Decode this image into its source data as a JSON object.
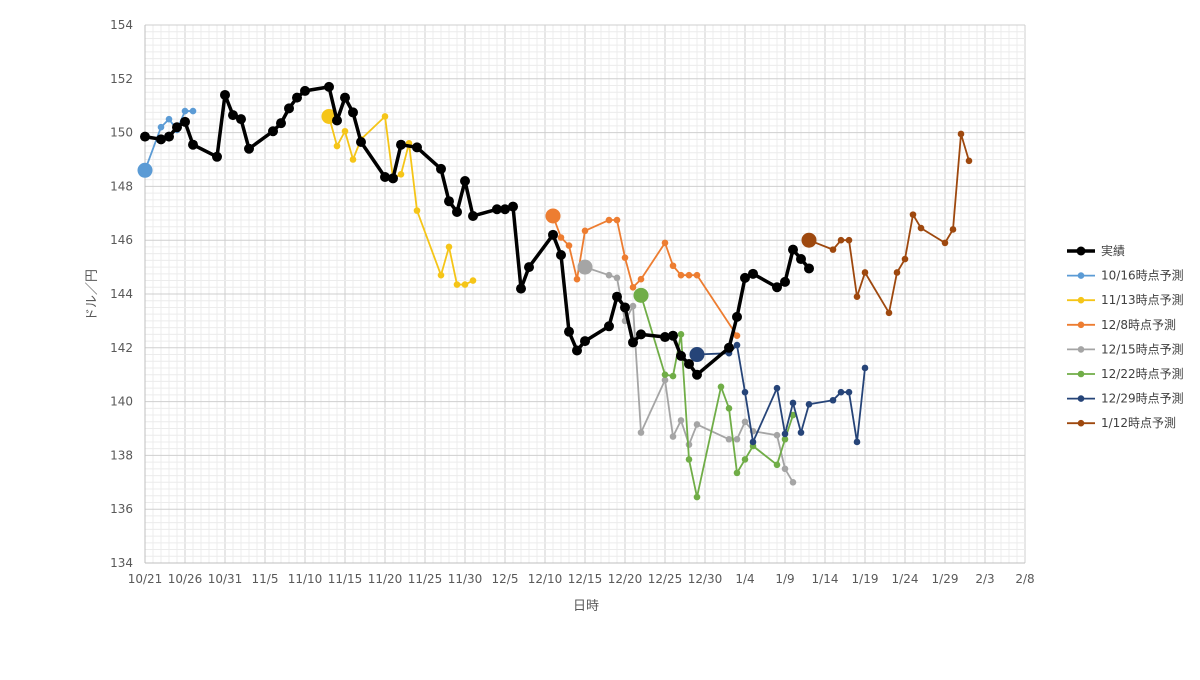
{
  "chart_data": {
    "type": "line",
    "title": "",
    "xlabel": "日時",
    "ylabel": "ドル／円",
    "ylim": [
      134,
      154
    ],
    "y_step": 2,
    "x_range": [
      "2023-10-21",
      "2024-02-08"
    ],
    "x_ticks": [
      {
        "date": "2023-10-21",
        "label": "10/21"
      },
      {
        "date": "2023-10-26",
        "label": "10/26"
      },
      {
        "date": "2023-10-31",
        "label": "10/31"
      },
      {
        "date": "2023-11-05",
        "label": "11/5"
      },
      {
        "date": "2023-11-10",
        "label": "11/10"
      },
      {
        "date": "2023-11-15",
        "label": "11/15"
      },
      {
        "date": "2023-11-20",
        "label": "11/20"
      },
      {
        "date": "2023-11-25",
        "label": "11/25"
      },
      {
        "date": "2023-11-30",
        "label": "11/30"
      },
      {
        "date": "2023-12-05",
        "label": "12/5"
      },
      {
        "date": "2023-12-10",
        "label": "12/10"
      },
      {
        "date": "2023-12-15",
        "label": "12/15"
      },
      {
        "date": "2023-12-20",
        "label": "12/20"
      },
      {
        "date": "2023-12-25",
        "label": "12/25"
      },
      {
        "date": "2023-12-30",
        "label": "12/30"
      },
      {
        "date": "2024-01-04",
        "label": "1/4"
      },
      {
        "date": "2024-01-09",
        "label": "1/9"
      },
      {
        "date": "2024-01-14",
        "label": "1/14"
      },
      {
        "date": "2024-01-19",
        "label": "1/19"
      },
      {
        "date": "2024-01-24",
        "label": "1/24"
      },
      {
        "date": "2024-01-29",
        "label": "1/29"
      },
      {
        "date": "2024-02-03",
        "label": "2/3"
      },
      {
        "date": "2024-02-08",
        "label": "2/8"
      }
    ],
    "grid": true,
    "legend_position": "right",
    "series": [
      {
        "name": "実績",
        "color": "#000000",
        "points": [
          [
            "2023-10-21",
            149.85
          ],
          [
            "2023-10-23",
            149.75
          ],
          [
            "2023-10-24",
            149.85
          ],
          [
            "2023-10-25",
            150.2
          ],
          [
            "2023-10-26",
            150.4
          ],
          [
            "2023-10-27",
            149.55
          ],
          [
            "2023-10-30",
            149.1
          ],
          [
            "2023-10-31",
            151.4
          ],
          [
            "2023-11-01",
            150.65
          ],
          [
            "2023-11-02",
            150.5
          ],
          [
            "2023-11-03",
            149.4
          ],
          [
            "2023-11-06",
            150.05
          ],
          [
            "2023-11-07",
            150.35
          ],
          [
            "2023-11-08",
            150.9
          ],
          [
            "2023-11-09",
            151.3
          ],
          [
            "2023-11-10",
            151.55
          ],
          [
            "2023-11-13",
            151.7
          ],
          [
            "2023-11-14",
            150.45
          ],
          [
            "2023-11-15",
            151.3
          ],
          [
            "2023-11-16",
            150.75
          ],
          [
            "2023-11-17",
            149.65
          ],
          [
            "2023-11-20",
            148.35
          ],
          [
            "2023-11-21",
            148.3
          ],
          [
            "2023-11-22",
            149.55
          ],
          [
            "2023-11-24",
            149.45
          ],
          [
            "2023-11-27",
            148.65
          ],
          [
            "2023-11-28",
            147.45
          ],
          [
            "2023-11-29",
            147.05
          ],
          [
            "2023-11-30",
            148.2
          ],
          [
            "2023-12-01",
            146.9
          ],
          [
            "2023-12-04",
            147.15
          ],
          [
            "2023-12-05",
            147.15
          ],
          [
            "2023-12-06",
            147.25
          ],
          [
            "2023-12-07",
            144.2
          ],
          [
            "2023-12-08",
            145.0
          ],
          [
            "2023-12-11",
            146.2
          ],
          [
            "2023-12-12",
            145.45
          ],
          [
            "2023-12-13",
            142.6
          ],
          [
            "2023-12-14",
            141.9
          ],
          [
            "2023-12-15",
            142.25
          ],
          [
            "2023-12-18",
            142.8
          ],
          [
            "2023-12-19",
            143.9
          ],
          [
            "2023-12-20",
            143.5
          ],
          [
            "2023-12-21",
            142.2
          ],
          [
            "2023-12-22",
            142.5
          ],
          [
            "2023-12-25",
            142.4
          ],
          [
            "2023-12-26",
            142.45
          ],
          [
            "2023-12-27",
            141.7
          ],
          [
            "2023-12-28",
            141.4
          ],
          [
            "2023-12-29",
            141.0
          ],
          [
            "2024-01-02",
            142.0
          ],
          [
            "2024-01-03",
            143.15
          ],
          [
            "2024-01-04",
            144.6
          ],
          [
            "2024-01-05",
            144.75
          ],
          [
            "2024-01-08",
            144.25
          ],
          [
            "2024-01-09",
            144.45
          ],
          [
            "2024-01-10",
            145.65
          ],
          [
            "2024-01-11",
            145.3
          ],
          [
            "2024-01-12",
            144.95
          ]
        ]
      },
      {
        "name": "10/16時点予測",
        "color": "#5B9BD5",
        "points": [
          [
            "2023-10-21",
            148.6
          ],
          [
            "2023-10-23",
            150.2
          ],
          [
            "2023-10-24",
            150.5
          ],
          [
            "2023-10-25",
            150.1
          ],
          [
            "2023-10-26",
            150.8
          ],
          [
            "2023-10-27",
            150.8
          ]
        ]
      },
      {
        "name": "11/13時点予測",
        "color": "#F5C518",
        "points": [
          [
            "2023-11-13",
            150.6
          ],
          [
            "2023-11-14",
            149.5
          ],
          [
            "2023-11-15",
            150.05
          ],
          [
            "2023-11-16",
            149.0
          ],
          [
            "2023-11-17",
            149.75
          ],
          [
            "2023-11-20",
            150.6
          ],
          [
            "2023-11-21",
            148.3
          ],
          [
            "2023-11-22",
            148.45
          ],
          [
            "2023-11-23",
            149.6
          ],
          [
            "2023-11-24",
            147.1
          ],
          [
            "2023-11-27",
            144.7
          ],
          [
            "2023-11-28",
            145.75
          ],
          [
            "2023-11-29",
            144.35
          ],
          [
            "2023-11-30",
            144.35
          ],
          [
            "2023-12-01",
            144.5
          ]
        ]
      },
      {
        "name": "12/8時点予測",
        "color": "#ED7D31",
        "points": [
          [
            "2023-12-11",
            146.9
          ],
          [
            "2023-12-12",
            146.1
          ],
          [
            "2023-12-13",
            145.8
          ],
          [
            "2023-12-14",
            144.55
          ],
          [
            "2023-12-15",
            146.35
          ],
          [
            "2023-12-18",
            146.75
          ],
          [
            "2023-12-19",
            146.75
          ],
          [
            "2023-12-20",
            145.35
          ],
          [
            "2023-12-21",
            144.25
          ],
          [
            "2023-12-22",
            144.55
          ],
          [
            "2023-12-25",
            145.9
          ],
          [
            "2023-12-26",
            145.05
          ],
          [
            "2023-12-27",
            144.7
          ],
          [
            "2023-12-28",
            144.7
          ],
          [
            "2023-12-29",
            144.7
          ],
          [
            "2024-01-03",
            142.45
          ]
        ]
      },
      {
        "name": "12/15時点予測",
        "color": "#A5A5A5",
        "points": [
          [
            "2023-12-15",
            145.0
          ],
          [
            "2023-12-18",
            144.7
          ],
          [
            "2023-12-19",
            144.6
          ],
          [
            "2023-12-20",
            143.0
          ],
          [
            "2023-12-21",
            143.55
          ],
          [
            "2023-12-22",
            138.85
          ],
          [
            "2023-12-25",
            140.8
          ],
          [
            "2023-12-26",
            138.7
          ],
          [
            "2023-12-27",
            139.3
          ],
          [
            "2023-12-28",
            138.4
          ],
          [
            "2023-12-29",
            139.15
          ],
          [
            "2024-01-02",
            138.6
          ],
          [
            "2024-01-03",
            138.6
          ],
          [
            "2024-01-04",
            139.25
          ],
          [
            "2024-01-05",
            138.9
          ],
          [
            "2024-01-08",
            138.75
          ],
          [
            "2024-01-09",
            137.5
          ],
          [
            "2024-01-10",
            137.0
          ]
        ]
      },
      {
        "name": "12/22時点予測",
        "color": "#70AD47",
        "points": [
          [
            "2023-12-22",
            143.95
          ],
          [
            "2023-12-25",
            141.0
          ],
          [
            "2023-12-26",
            140.95
          ],
          [
            "2023-12-27",
            142.5
          ],
          [
            "2023-12-28",
            137.85
          ],
          [
            "2023-12-29",
            136.45
          ],
          [
            "2024-01-01",
            140.55
          ],
          [
            "2024-01-02",
            139.75
          ],
          [
            "2024-01-03",
            137.35
          ],
          [
            "2024-01-04",
            137.85
          ],
          [
            "2024-01-05",
            138.35
          ],
          [
            "2024-01-08",
            137.65
          ],
          [
            "2024-01-09",
            138.6
          ],
          [
            "2024-01-10",
            139.5
          ]
        ]
      },
      {
        "name": "12/29時点予測",
        "color": "#264478",
        "points": [
          [
            "2023-12-29",
            141.75
          ],
          [
            "2024-01-02",
            141.8
          ],
          [
            "2024-01-03",
            142.1
          ],
          [
            "2024-01-04",
            140.35
          ],
          [
            "2024-01-05",
            138.5
          ],
          [
            "2024-01-08",
            140.5
          ],
          [
            "2024-01-09",
            138.8
          ],
          [
            "2024-01-10",
            139.95
          ],
          [
            "2024-01-11",
            138.85
          ],
          [
            "2024-01-12",
            139.9
          ],
          [
            "2024-01-15",
            140.05
          ],
          [
            "2024-01-16",
            140.35
          ],
          [
            "2024-01-17",
            140.35
          ],
          [
            "2024-01-18",
            138.5
          ],
          [
            "2024-01-19",
            141.25
          ]
        ]
      },
      {
        "name": "1/12時点予測",
        "color": "#9E480E",
        "points": [
          [
            "2024-01-12",
            146.0
          ],
          [
            "2024-01-15",
            145.65
          ],
          [
            "2024-01-16",
            146.0
          ],
          [
            "2024-01-17",
            146.0
          ],
          [
            "2024-01-18",
            143.9
          ],
          [
            "2024-01-19",
            144.8
          ],
          [
            "2024-01-22",
            143.3
          ],
          [
            "2024-01-23",
            144.8
          ],
          [
            "2024-01-24",
            145.3
          ],
          [
            "2024-01-25",
            146.95
          ],
          [
            "2024-01-26",
            146.45
          ],
          [
            "2024-01-29",
            145.9
          ],
          [
            "2024-01-30",
            146.4
          ],
          [
            "2024-01-31",
            149.95
          ],
          [
            "2024-02-01",
            148.95
          ]
        ]
      }
    ]
  }
}
